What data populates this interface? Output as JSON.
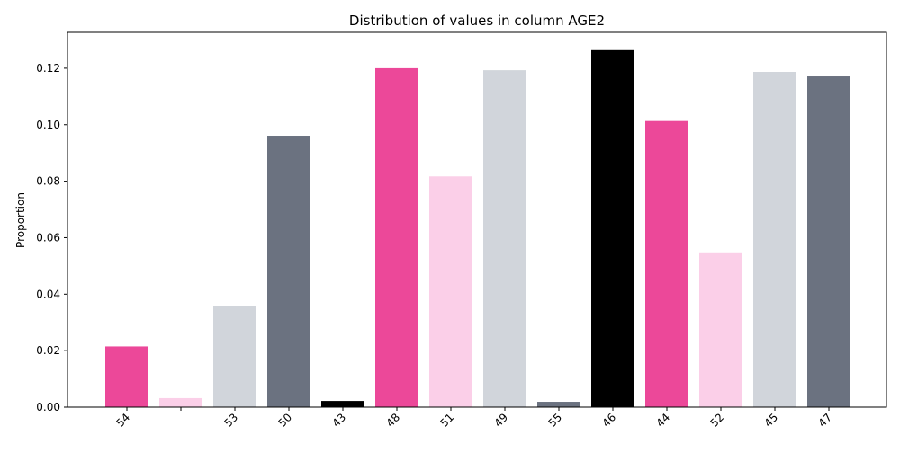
{
  "chart_data": {
    "type": "bar",
    "title": "Distribution of values in column AGE2",
    "xlabel": "",
    "ylabel": "Proportion",
    "categories": [
      "54",
      "",
      "53",
      "50",
      "43",
      "48",
      "51",
      "49",
      "55",
      "46",
      "44",
      "52",
      "45",
      "47"
    ],
    "values": [
      0.0215,
      0.0032,
      0.0359,
      0.0961,
      0.0022,
      0.12,
      0.0817,
      0.1193,
      0.0019,
      0.1264,
      0.1013,
      0.0548,
      0.1187,
      0.1171
    ],
    "colors": [
      "#ec4899",
      "#fbcfe8",
      "#d1d5db",
      "#6b7280",
      "#000000",
      "#ec4899",
      "#fbcfe8",
      "#d1d5db",
      "#6b7280",
      "#000000",
      "#ec4899",
      "#fbcfe8",
      "#d1d5db",
      "#6b7280"
    ],
    "ylim": [
      0,
      0.1327
    ],
    "yticks": [
      0.0,
      0.02,
      0.04,
      0.06,
      0.08,
      0.1,
      0.12
    ],
    "ytick_labels": [
      "0.00",
      "0.02",
      "0.04",
      "0.06",
      "0.08",
      "0.10",
      "0.12"
    ],
    "grid": false,
    "legend": "none"
  }
}
